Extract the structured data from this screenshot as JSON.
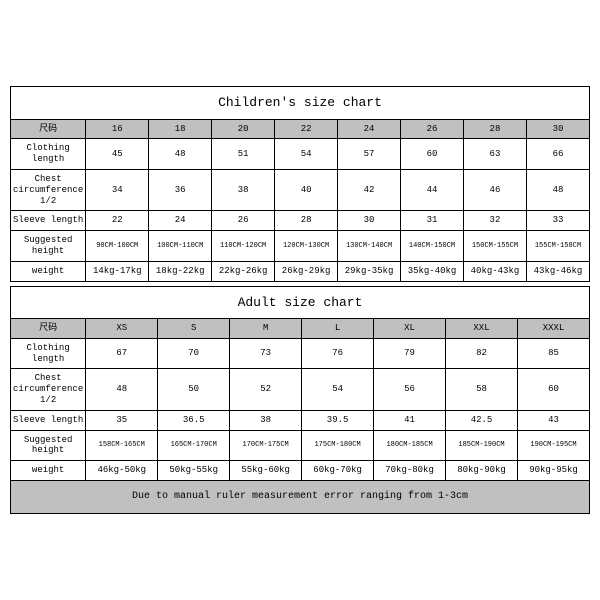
{
  "children": {
    "title": "Children's size chart",
    "label_col": "尺码",
    "sizes": [
      "16",
      "18",
      "20",
      "22",
      "24",
      "26",
      "28",
      "30"
    ],
    "rows": [
      {
        "label": "Clothing length",
        "vals": [
          "45",
          "48",
          "51",
          "54",
          "57",
          "60",
          "63",
          "66"
        ]
      },
      {
        "label": "Chest circumference 1/2",
        "vals": [
          "34",
          "36",
          "38",
          "40",
          "42",
          "44",
          "46",
          "48"
        ]
      },
      {
        "label": "Sleeve length",
        "vals": [
          "22",
          "24",
          "26",
          "28",
          "30",
          "31",
          "32",
          "33"
        ]
      },
      {
        "label": "Suggested height",
        "vals": [
          "90CM-100CM",
          "100CM-110CM",
          "110CM-120CM",
          "120CM-130CM",
          "130CM-140CM",
          "140CM-150CM",
          "150CM-155CM",
          "155CM-158CM"
        ],
        "small": true
      },
      {
        "label": "weight",
        "vals": [
          "14kg-17kg",
          "18kg-22kg",
          "22kg-26kg",
          "26kg-29kg",
          "29kg-35kg",
          "35kg-40kg",
          "40kg-43kg",
          "43kg-46kg"
        ]
      }
    ]
  },
  "adult": {
    "title": "Adult size chart",
    "label_col": "尺码",
    "sizes": [
      "XS",
      "S",
      "M",
      "L",
      "XL",
      "XXL",
      "XXXL"
    ],
    "rows": [
      {
        "label": "Clothing length",
        "vals": [
          "67",
          "70",
          "73",
          "76",
          "79",
          "82",
          "85"
        ]
      },
      {
        "label": "Chest circumference 1/2",
        "vals": [
          "48",
          "50",
          "52",
          "54",
          "56",
          "58",
          "60"
        ]
      },
      {
        "label": "Sleeve length",
        "vals": [
          "35",
          "36.5",
          "38",
          "39.5",
          "41",
          "42.5",
          "43"
        ]
      },
      {
        "label": "Suggested height",
        "vals": [
          "158CM-165CM",
          "165CM-170CM",
          "170CM-175CM",
          "175CM-180CM",
          "180CM-185CM",
          "185CM-190CM",
          "190CM-195CM"
        ],
        "small": true
      },
      {
        "label": "weight",
        "vals": [
          "46kg-50kg",
          "50kg-55kg",
          "55kg-60kg",
          "60kg-70kg",
          "70kg-80kg",
          "80kg-90kg",
          "90kg-95kg"
        ]
      }
    ],
    "footer": "Due to manual ruler measurement error ranging from 1-3cm"
  },
  "colors": {
    "border": "#000000",
    "header_bg": "#c0c0c0",
    "footer_bg": "#c0c0c0",
    "bg": "#ffffff"
  }
}
